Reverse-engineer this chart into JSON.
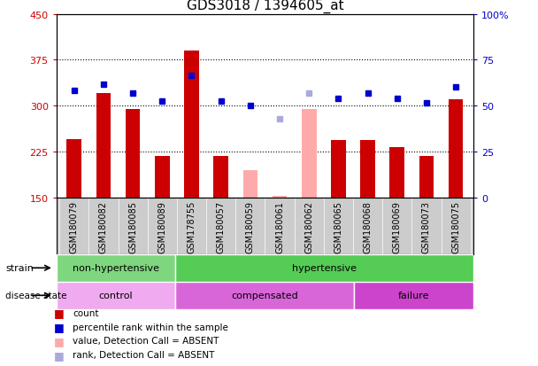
{
  "title": "GDS3018 / 1394605_at",
  "samples": [
    "GSM180079",
    "GSM180082",
    "GSM180085",
    "GSM180089",
    "GSM178755",
    "GSM180057",
    "GSM180059",
    "GSM180061",
    "GSM180062",
    "GSM180065",
    "GSM180068",
    "GSM180069",
    "GSM180073",
    "GSM180075"
  ],
  "count_values": [
    245,
    320,
    295,
    218,
    390,
    218,
    null,
    null,
    null,
    243,
    243,
    232,
    218,
    310
  ],
  "count_absent": [
    null,
    null,
    null,
    null,
    null,
    null,
    195,
    152,
    295,
    null,
    null,
    null,
    null,
    null
  ],
  "percentile_values": [
    325,
    335,
    320,
    308,
    350,
    308,
    300,
    null,
    null,
    312,
    320,
    312,
    305,
    330
  ],
  "percentile_absent": [
    null,
    null,
    null,
    null,
    null,
    null,
    null,
    278,
    320,
    null,
    null,
    null,
    null,
    null
  ],
  "ylim_left": [
    150,
    450
  ],
  "ylim_right": [
    0,
    100
  ],
  "yticks_left": [
    150,
    225,
    300,
    375,
    450
  ],
  "yticks_right": [
    0,
    25,
    50,
    75,
    100
  ],
  "ytick_labels_right": [
    "0",
    "25",
    "50",
    "75",
    "100%"
  ],
  "strain_groups": [
    {
      "label": "non-hypertensive",
      "start": 0,
      "end": 4,
      "color": "#7ed67e"
    },
    {
      "label": "hypertensive",
      "start": 4,
      "end": 14,
      "color": "#55cc55"
    }
  ],
  "disease_groups": [
    {
      "label": "control",
      "start": 0,
      "end": 4,
      "color": "#f0aaf0"
    },
    {
      "label": "compensated",
      "start": 4,
      "end": 10,
      "color": "#d966d9"
    },
    {
      "label": "failure",
      "start": 10,
      "end": 14,
      "color": "#cc44cc"
    }
  ],
  "count_color": "#cc0000",
  "count_absent_color": "#ffaaaa",
  "percentile_color": "#0000cc",
  "percentile_absent_color": "#aaaadd",
  "bar_width": 0.5,
  "xtick_bg_color": "#cccccc",
  "grid_color": "#000000",
  "grid_linestyle": ":",
  "grid_linewidth": 0.8
}
